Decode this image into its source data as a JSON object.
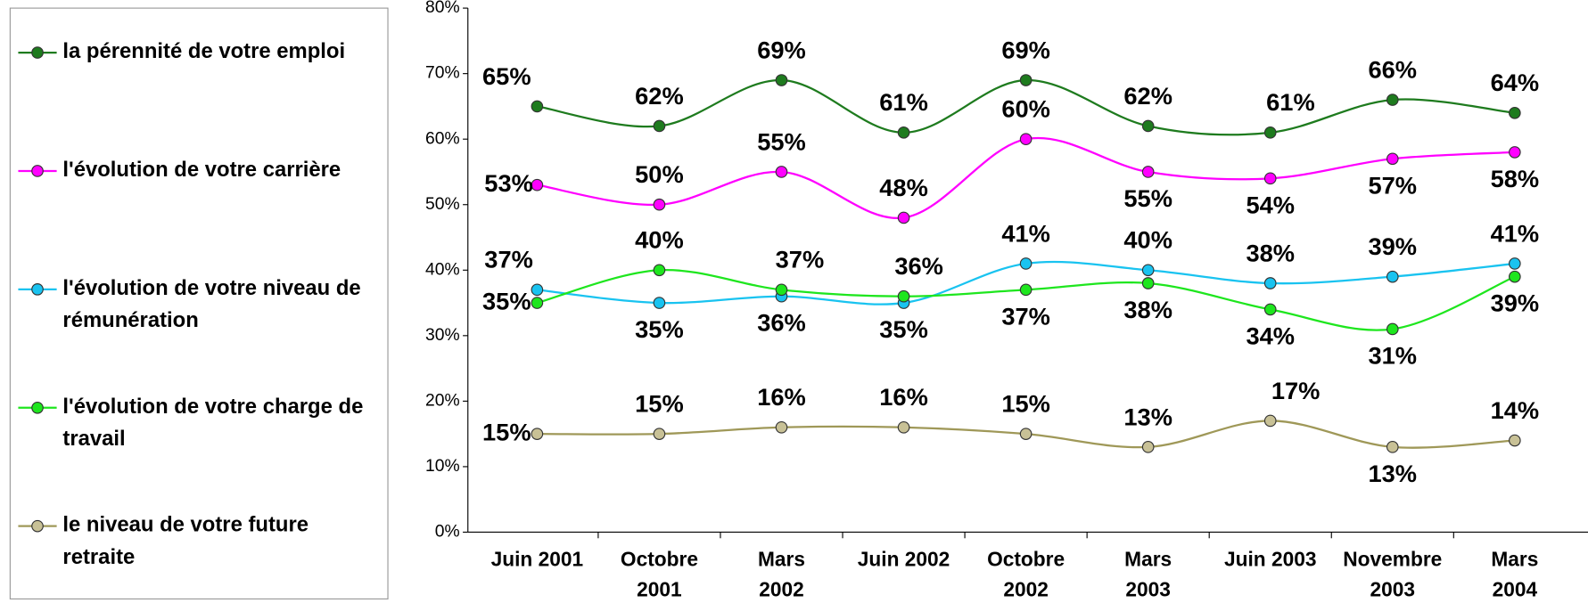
{
  "chart_data": {
    "type": "line",
    "categories": [
      [
        "Juin 2001"
      ],
      [
        "Octobre",
        "2001"
      ],
      [
        "Mars",
        "2002"
      ],
      [
        "Juin 2002"
      ],
      [
        "Octobre",
        "2002"
      ],
      [
        "Mars",
        "2003"
      ],
      [
        "Juin 2003"
      ],
      [
        "Novembre",
        "2003"
      ],
      [
        "Mars",
        "2004"
      ]
    ],
    "series": [
      {
        "name": "la pérennité de votre emploi",
        "color": "#1e7b1e",
        "values": [
          65,
          62,
          69,
          61,
          69,
          62,
          61,
          66,
          64
        ],
        "value_labels": [
          "65%",
          "62%",
          "69%",
          "61%",
          "69%",
          "62%",
          "61%",
          "66%",
          "64%"
        ]
      },
      {
        "name": "l'évolution de votre carrière",
        "color": "#ff00ff",
        "values": [
          53,
          50,
          55,
          48,
          60,
          55,
          54,
          57,
          58
        ],
        "value_labels": [
          "53%",
          "50%",
          "55%",
          "48%",
          "60%",
          "55%",
          "54%",
          "57%",
          "58%"
        ]
      },
      {
        "name": "l'évolution de votre niveau de rémunération",
        "color": "#19c3f0",
        "values": [
          37,
          35,
          36,
          35,
          41,
          40,
          38,
          39,
          41
        ],
        "value_labels": [
          "37%",
          "35%",
          "36%",
          "35%",
          "41%",
          "40%",
          "38%",
          "39%",
          "41%"
        ]
      },
      {
        "name": "l'évolution de votre charge de travail",
        "color": "#1ee61e",
        "values": [
          35,
          40,
          37,
          36,
          37,
          38,
          34,
          31,
          39
        ],
        "value_labels": [
          "35%",
          "40%",
          "37%",
          "36%",
          "37%",
          "38%",
          "34%",
          "31%",
          "39%"
        ]
      },
      {
        "name": "le niveau de votre future retraite",
        "color": "#9f9858",
        "values": [
          15,
          15,
          16,
          16,
          15,
          13,
          17,
          13,
          14
        ],
        "value_labels": [
          "15%",
          "15%",
          "16%",
          "16%",
          "15%",
          "13%",
          "17%",
          "13%",
          "14%"
        ]
      }
    ],
    "ylim": [
      0,
      80
    ],
    "yticks": [
      {
        "value": 0,
        "label": "0%"
      },
      {
        "value": 10,
        "label": "10%"
      },
      {
        "value": 20,
        "label": "20%"
      },
      {
        "value": 30,
        "label": "30%"
      },
      {
        "value": 40,
        "label": "40%"
      },
      {
        "value": 50,
        "label": "50%"
      },
      {
        "value": 60,
        "label": "60%"
      },
      {
        "value": 70,
        "label": "70%"
      },
      {
        "value": 80,
        "label": "80%"
      }
    ],
    "legend": "left"
  }
}
